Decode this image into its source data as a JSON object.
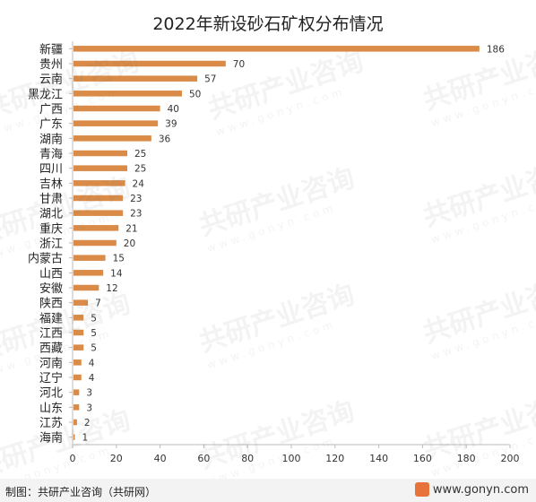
{
  "title": "2022年新设砂石矿权分布情况",
  "footer": {
    "source": "制图：共研产业咨询（共研网）",
    "brand": "www.gonyn.com"
  },
  "watermark": {
    "text": "共研产业咨询",
    "sub": "www.gonyn.com"
  },
  "colors": {
    "bar": "#d98b47",
    "axis": "#bbbbbb",
    "grid": "#e6e6e6",
    "text": "#222222"
  },
  "chart_data": {
    "type": "bar",
    "orientation": "horizontal",
    "title": "2022年新设砂石矿权分布情况",
    "categories": [
      "新疆",
      "贵州",
      "云南",
      "黑龙江",
      "广西",
      "广东",
      "湖南",
      "青海",
      "四川",
      "吉林",
      "甘肃",
      "湖北",
      "重庆",
      "浙江",
      "内蒙古",
      "山西",
      "安徽",
      "陕西",
      "福建",
      "江西",
      "西藏",
      "河南",
      "辽宁",
      "河北",
      "山东",
      "江苏",
      "海南"
    ],
    "values": [
      186,
      70,
      57,
      50,
      40,
      39,
      36,
      25,
      25,
      24,
      23,
      23,
      21,
      20,
      15,
      14,
      12,
      7,
      5,
      5,
      5,
      4,
      4,
      3,
      3,
      2,
      1
    ],
    "xlim": [
      0,
      200
    ],
    "xticks": [
      0,
      20,
      40,
      60,
      80,
      100,
      120,
      140,
      160,
      180,
      200
    ],
    "grid": false,
    "data_labels": true
  }
}
